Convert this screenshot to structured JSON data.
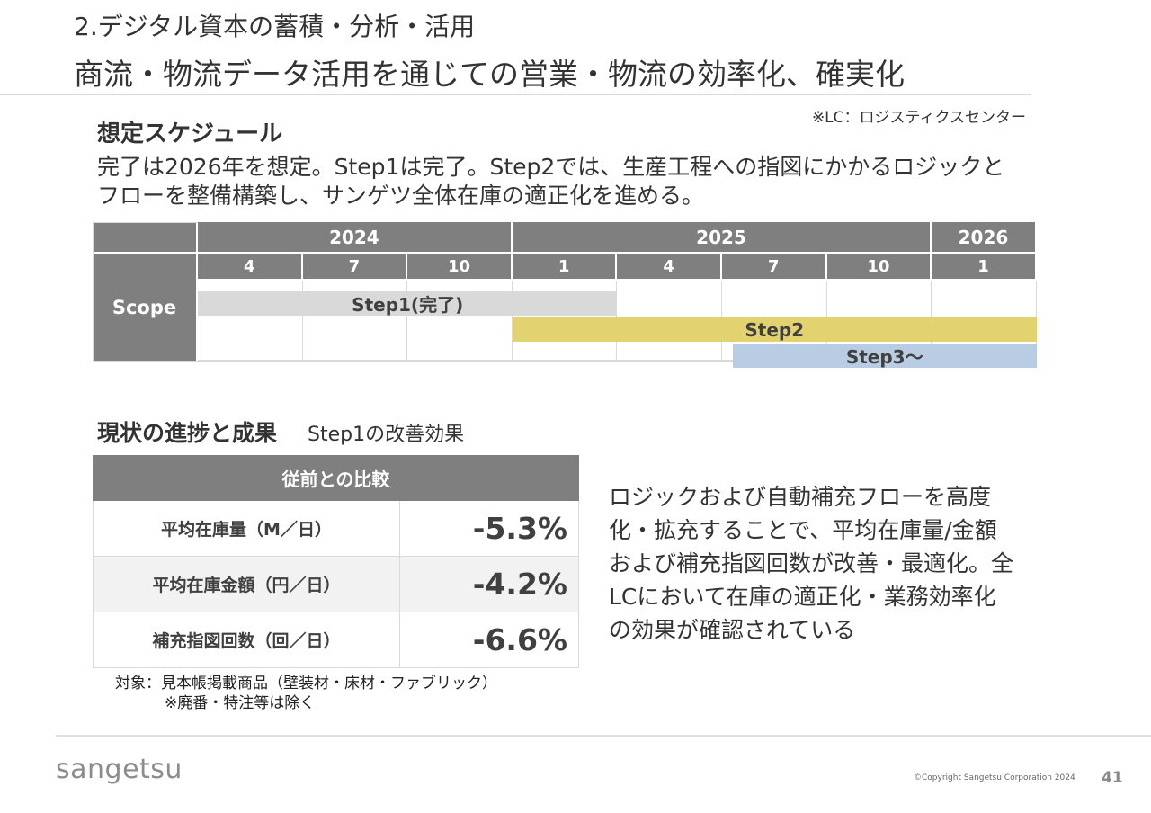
{
  "header": {
    "section_title": "2.デジタル資本の蓄積・分析・活用",
    "main_title": "商流・物流データ活用を通じての営業・物流の効率化、確実化"
  },
  "lc_note": "※LC：ロジスティクスセンター",
  "schedule": {
    "heading": "想定スケジュール",
    "description_line1": "完了は2026年を想定。Step1は完了。Step2では、生産工程への指図にかかるロジックと",
    "description_line2": "フローを整備構築し、サンゲツ全体在庫の適正化を進める。",
    "row_label": "Scope",
    "years": [
      {
        "label": "2024",
        "span": 3
      },
      {
        "label": "2025",
        "span": 4
      },
      {
        "label": "2026",
        "span": 1
      }
    ],
    "months": [
      "4",
      "7",
      "10",
      "1",
      "4",
      "7",
      "10",
      "1"
    ],
    "bars": [
      {
        "label": "Step1(完了)",
        "start": 0,
        "end": 4,
        "color": "#d9d9d9"
      },
      {
        "label": "Step2",
        "start": 3,
        "end": 8,
        "color": "#e3d370"
      },
      {
        "label": "Step3〜",
        "start": 5.1,
        "end": 8,
        "color": "#b8cce4"
      }
    ]
  },
  "progress": {
    "heading": "現状の進捗と成果",
    "subheading": "Step1の改善効果",
    "table_header": "従前との比較",
    "rows": [
      {
        "label": "平均在庫量（M／日）",
        "value": "-5.3%"
      },
      {
        "label": "平均在庫金額（円／日）",
        "value": "-4.2%"
      },
      {
        "label": "補充指図回数（回／日）",
        "value": "-6.6%"
      }
    ],
    "target_line1": "対象：見本帳掲載商品（壁装材・床材・ファブリック）",
    "target_line2": "※廃番・特注等は除く",
    "summary_lines": [
      "ロジックおよび自動補充フローを高度",
      "化・拡充することで、平均在庫量/金額",
      "および補充指図回数が改善・最適化。全",
      "LCにおいて在庫の適正化・業務効率化",
      "の効果が確認されている"
    ]
  },
  "footer": {
    "logo": "sangetsu",
    "copyright": "©Copyright Sangetsu Corporation 2024",
    "page_number": "41"
  }
}
